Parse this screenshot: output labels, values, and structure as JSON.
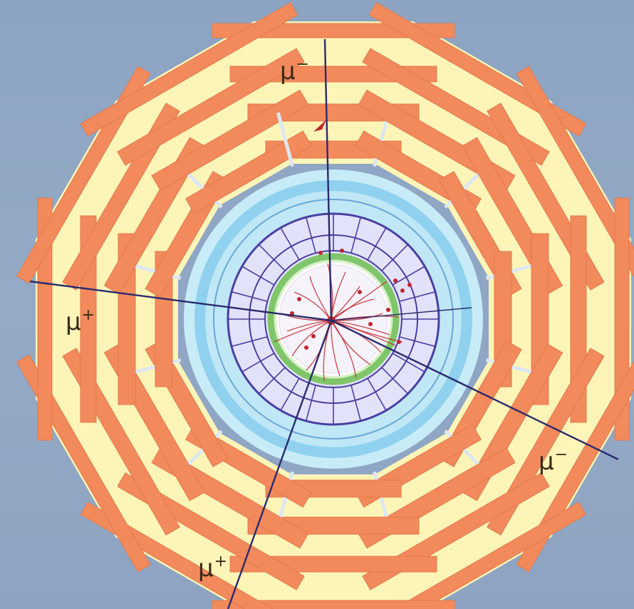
{
  "detector": {
    "sectors": 12,
    "colors": {
      "background": "#8fa6c4",
      "muon_chamber": "#f28a5c",
      "return_yoke": "#fdf5b8",
      "gap": "#dde7f2",
      "solenoid_outer": "#c7ecf7",
      "solenoid_mid": "#8fd1ee",
      "hcal": "#e3e2fb",
      "hcal_border": "#4a3fa0",
      "ecal": "#7fc66a",
      "tracker": "#ffffff",
      "track": "#c0272d",
      "muon_track": "#2a2a6e"
    }
  },
  "labels": {
    "muon_top": {
      "symbol": "μ",
      "charge": "−"
    },
    "muon_left": {
      "symbol": "μ",
      "charge": "+"
    },
    "muon_right": {
      "symbol": "μ",
      "charge": "−"
    },
    "muon_bottom": {
      "symbol": "μ",
      "charge": "+"
    }
  }
}
